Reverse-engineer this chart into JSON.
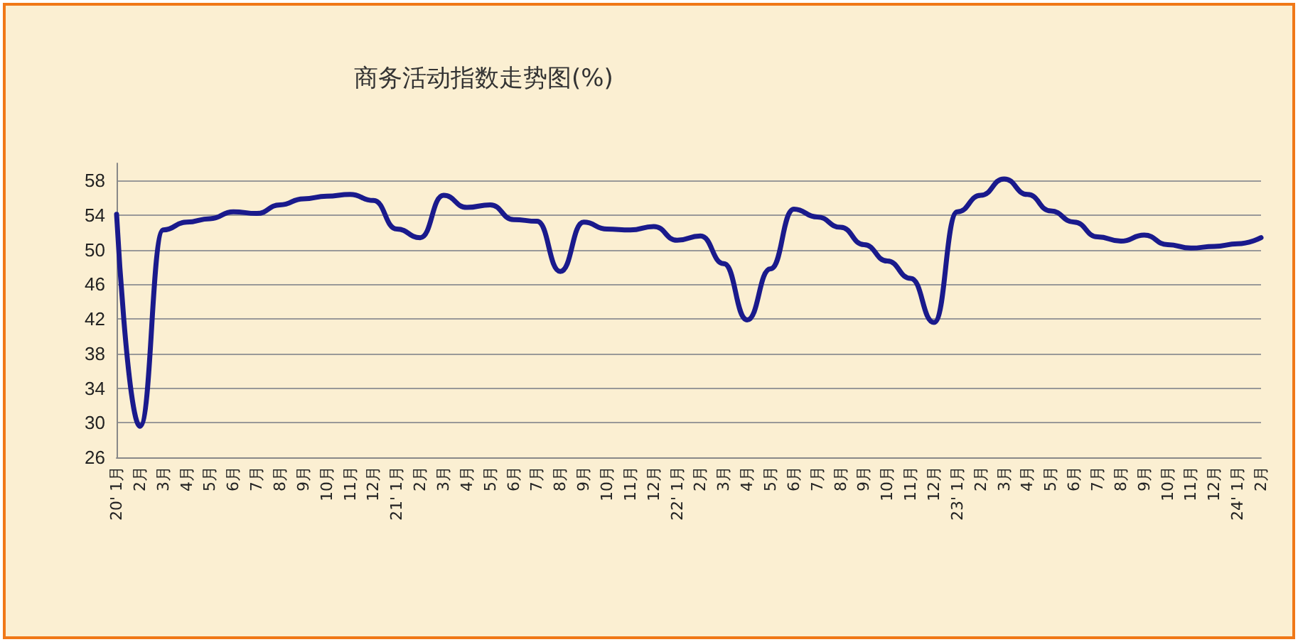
{
  "chart_data": {
    "type": "line",
    "title": "商务活动指数走势图(%)",
    "categories": [
      "20' 1月",
      "2月",
      "3月",
      "4月",
      "5月",
      "6月",
      "7月",
      "8月",
      "9月",
      "10月",
      "11月",
      "12月",
      "21' 1月",
      "2月",
      "3月",
      "4月",
      "5月",
      "6月",
      "7月",
      "8月",
      "9月",
      "10月",
      "11月",
      "12月",
      "22' 1月",
      "2月",
      "3月",
      "4月",
      "5月",
      "6月",
      "7月",
      "8月",
      "9月",
      "10月",
      "11月",
      "12月",
      "23' 1月",
      "2月",
      "3月",
      "4月",
      "5月",
      "6月",
      "7月",
      "8月",
      "9月",
      "10月",
      "11月",
      "12月",
      "24' 1月",
      "2月"
    ],
    "series": [
      {
        "color": "#1a1a8c",
        "values": [
          54.1,
          29.6,
          52.3,
          53.2,
          53.6,
          54.4,
          54.2,
          55.2,
          55.9,
          56.2,
          56.4,
          55.7,
          52.4,
          51.4,
          56.3,
          54.9,
          55.2,
          53.5,
          53.3,
          47.5,
          53.2,
          52.4,
          52.3,
          52.7,
          51.1,
          51.6,
          48.4,
          41.9,
          47.8,
          54.7,
          53.8,
          52.6,
          50.6,
          48.7,
          46.7,
          41.6,
          54.4,
          56.3,
          58.2,
          56.4,
          54.5,
          53.2,
          51.5,
          51.0,
          51.7,
          50.6,
          50.2,
          50.4,
          50.7,
          51.4
        ]
      }
    ],
    "ylim": [
      26,
      60
    ],
    "yticks": [
      26,
      30,
      34,
      38,
      42,
      46,
      50,
      54,
      58
    ],
    "grid": "y",
    "marker": "none",
    "line_style": "solid"
  }
}
